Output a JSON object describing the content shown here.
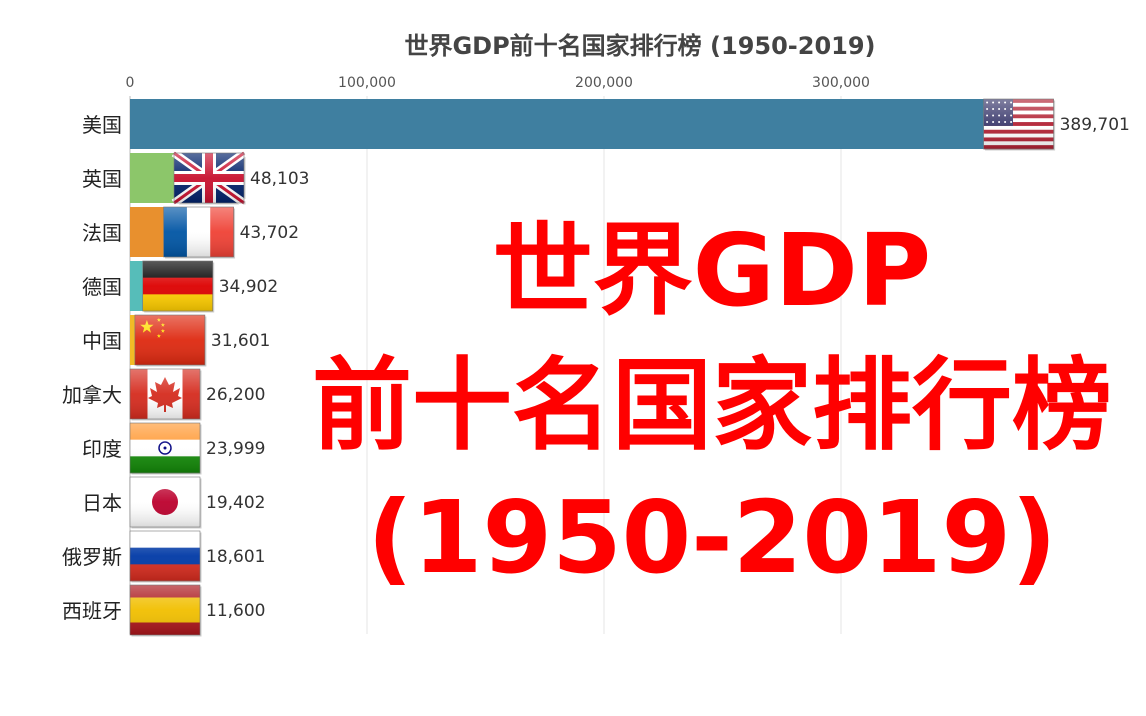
{
  "chart_data": {
    "type": "bar",
    "orientation": "horizontal",
    "title": "世界GDP前十名国家排行榜 (1950-2019)",
    "categories": [
      "美国",
      "英国",
      "法国",
      "德国",
      "中国",
      "加拿大",
      "印度",
      "日本",
      "俄罗斯",
      "西班牙"
    ],
    "values": [
      389701,
      48103,
      43702,
      34902,
      31601,
      26200,
      23999,
      19402,
      18601,
      11600
    ],
    "value_labels": [
      "389,701",
      "48,103",
      "43,702",
      "34,902",
      "31,601",
      "26,200",
      "23,999",
      "19,402",
      "18,601",
      "11,600"
    ],
    "bar_colors": [
      "#3F7FA0",
      "#8CC66A",
      "#E8902E",
      "#56BDB9",
      "#F2BB26",
      "#2F8FD0",
      "#E25555",
      "#8FC2C2",
      "#A6A6D8",
      "#C9A27A"
    ],
    "flag_icons": [
      "usa-flag-icon",
      "uk-flag-icon",
      "france-flag-icon",
      "germany-flag-icon",
      "china-flag-icon",
      "canada-flag-icon",
      "india-flag-icon",
      "japan-flag-icon",
      "russia-flag-icon",
      "spain-flag-icon"
    ],
    "xlim": [
      0,
      420000
    ],
    "x_ticks": [
      0,
      100000,
      200000,
      300000
    ],
    "x_tick_labels": [
      "0",
      "100,000",
      "200,000",
      "300,000"
    ],
    "axis_position": "top",
    "grid": true,
    "legend": "none"
  },
  "overlay": {
    "lines": [
      "世界GDP",
      "前十名国家排行榜",
      "(1950-2019)"
    ],
    "color": "#FF0000"
  }
}
